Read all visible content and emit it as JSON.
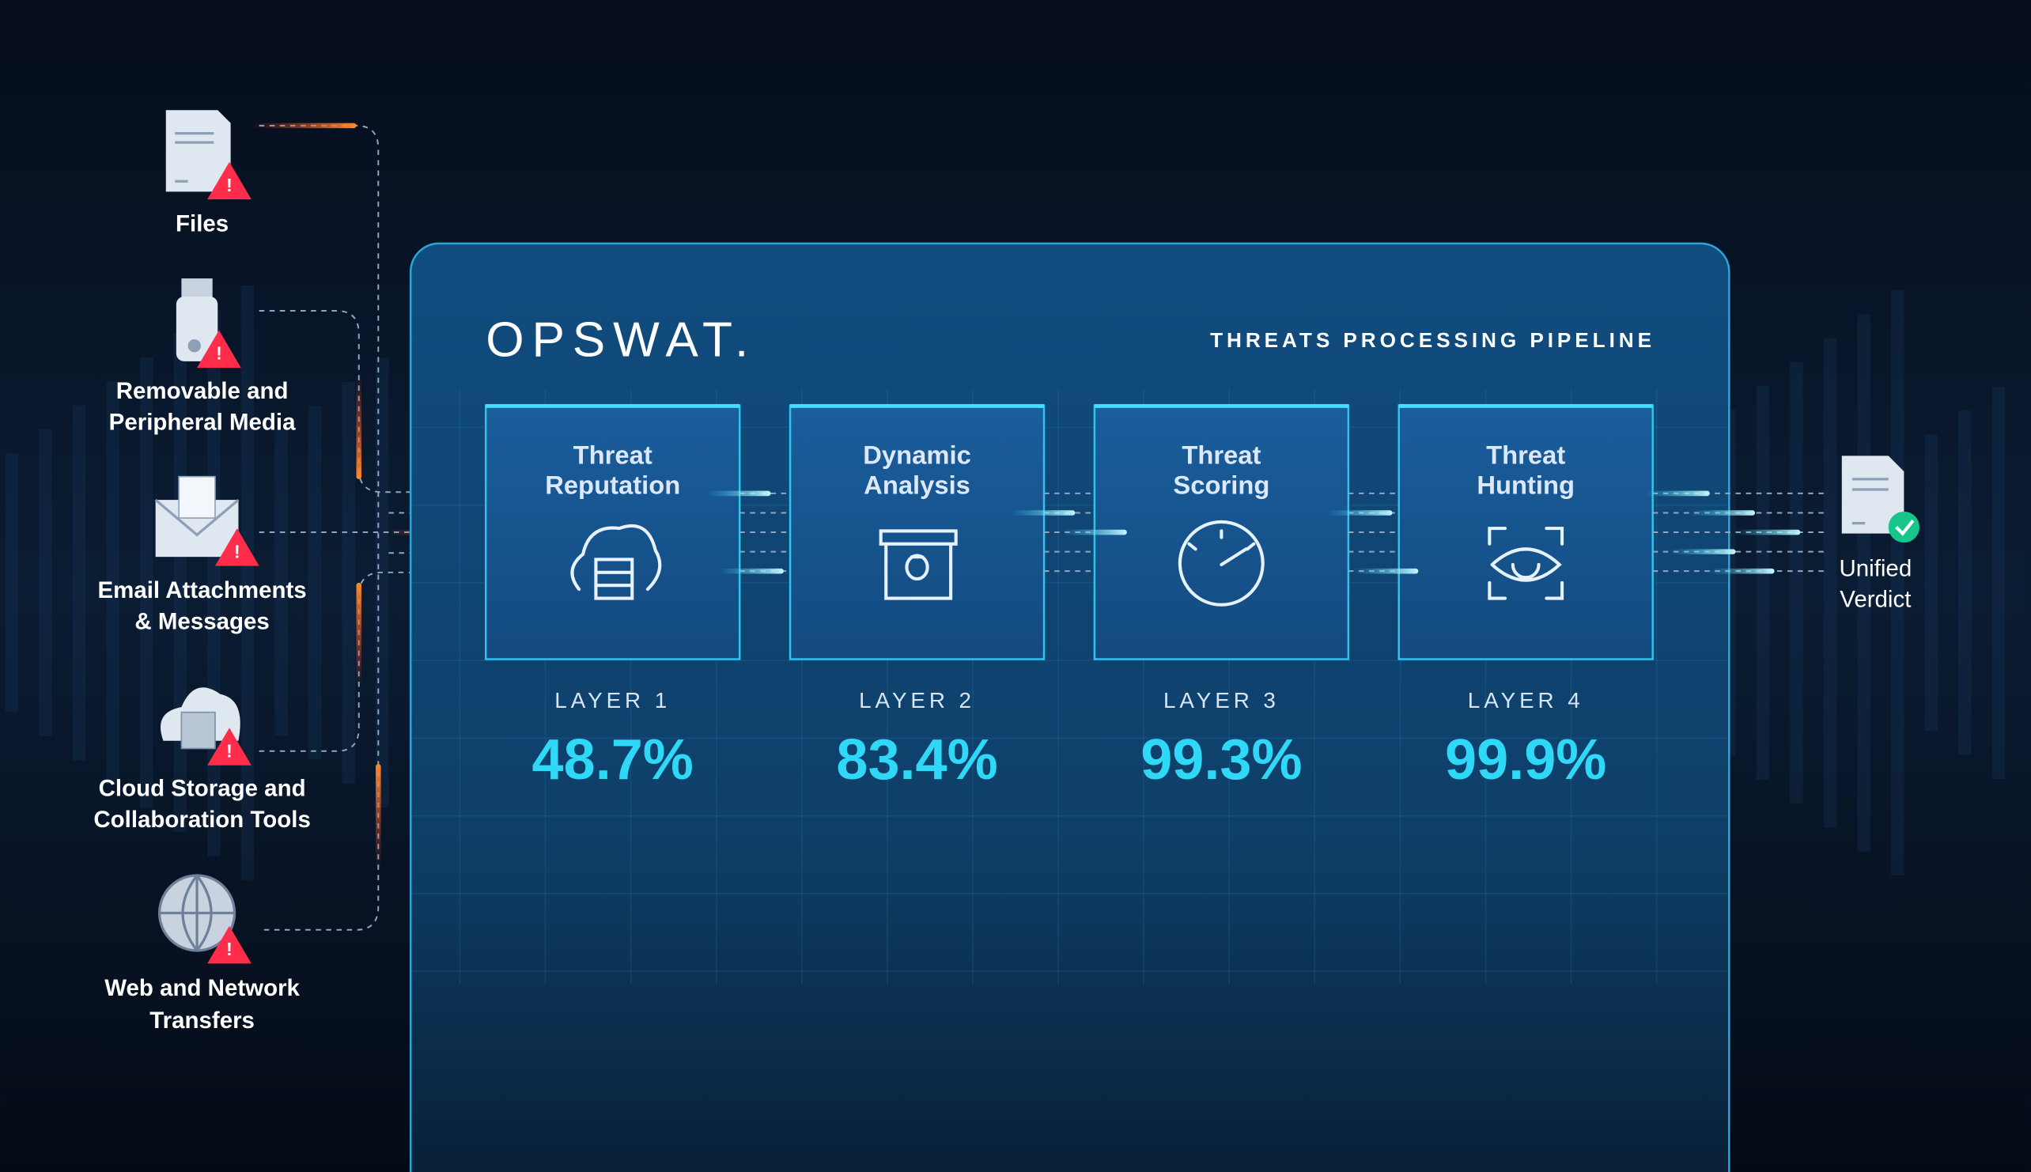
{
  "sources": [
    {
      "label": [
        "Files"
      ]
    },
    {
      "label": [
        "Removable and",
        "Peripheral Media"
      ]
    },
    {
      "label": [
        "Email Attachments",
        "& Messages"
      ]
    },
    {
      "label": [
        "Cloud Storage and",
        "Collaboration Tools"
      ]
    },
    {
      "label": [
        "Web and Network",
        "Transfers"
      ]
    }
  ],
  "brand": "OPSWAT.",
  "pipeline_title": "THREATS PROCESSING PIPELINE",
  "layers": [
    {
      "name": [
        "Threat",
        "Reputation"
      ],
      "layer": "LAYER 1",
      "rate": "48.7%"
    },
    {
      "name": [
        "Dynamic",
        "Analysis"
      ],
      "layer": "LAYER 2",
      "rate": "83.4%"
    },
    {
      "name": [
        "Threat",
        "Scoring"
      ],
      "layer": "LAYER 3",
      "rate": "99.3%"
    },
    {
      "name": [
        "Threat",
        "Hunting"
      ],
      "layer": "LAYER 4",
      "rate": "99.9%"
    }
  ],
  "verdict": [
    "Unified",
    "Verdict"
  ]
}
